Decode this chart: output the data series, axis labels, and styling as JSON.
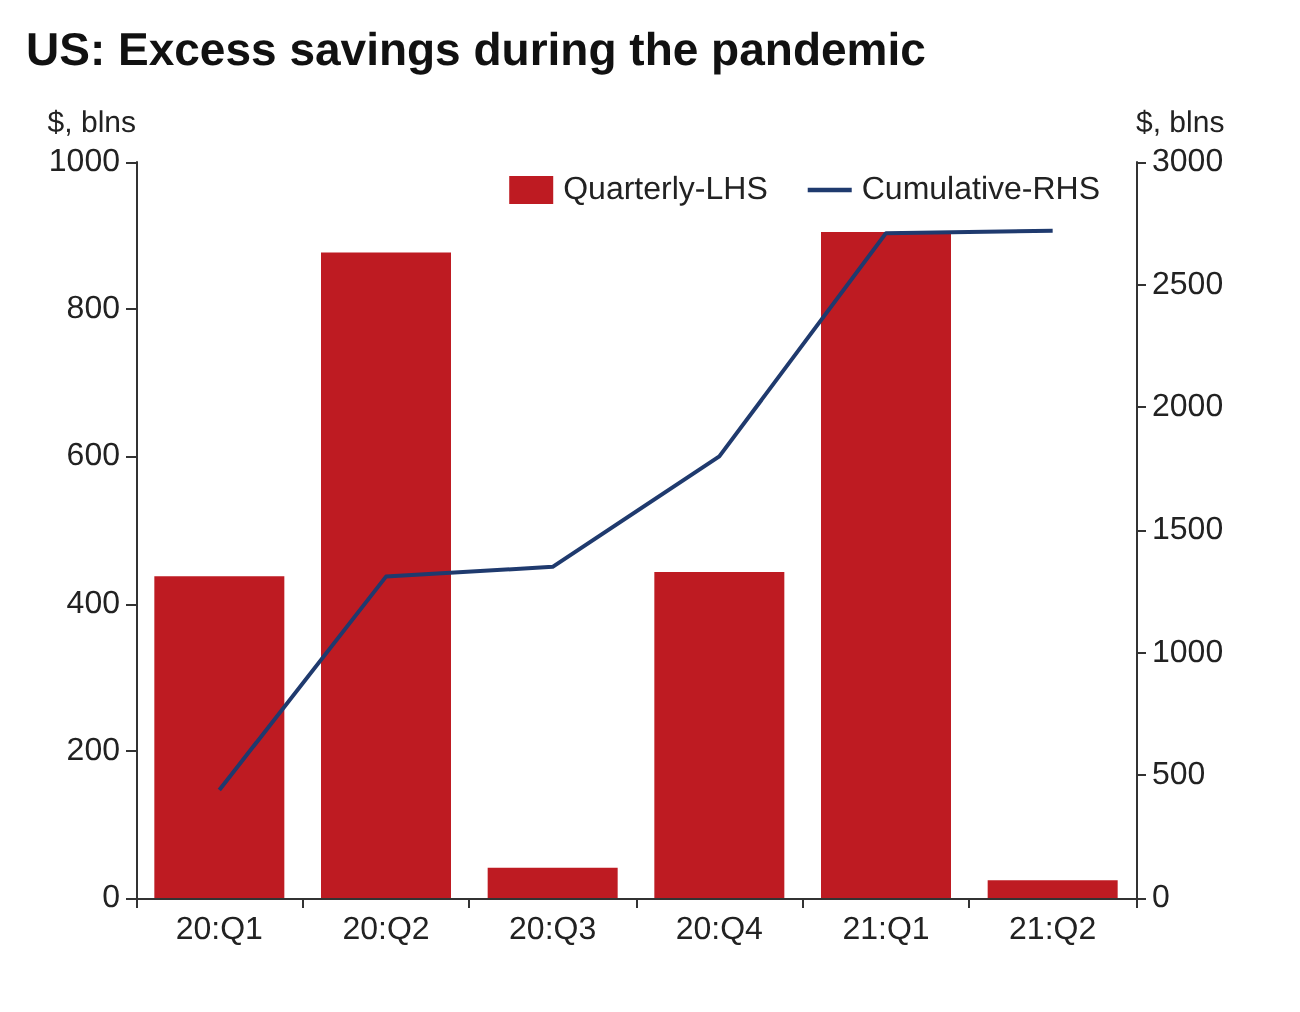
{
  "chart_data": {
    "type": "bar",
    "title": "US: Excess savings during the pandemic",
    "ylabel": "$, blns",
    "y2label": "$, blns",
    "categories": [
      "20:Q1",
      "20:Q2",
      "20:Q3",
      "20:Q4",
      "21:Q1",
      "21:Q2"
    ],
    "series": [
      {
        "name": "Quarterly-LHS",
        "color": "#be1b22",
        "values": [
          437,
          877,
          41,
          443,
          905,
          24
        ]
      },
      {
        "name": "Cumulative-RHS",
        "type": "line",
        "axis": "y2",
        "color": "#1f3a6e",
        "values": [
          440,
          1310,
          1350,
          1800,
          2710,
          2720
        ]
      }
    ],
    "ylim": [
      0,
      1000
    ],
    "yticks": [
      0,
      200,
      400,
      600,
      800,
      1000
    ],
    "y2lim": [
      0,
      3000
    ],
    "y2ticks": [
      0,
      500,
      1000,
      1500,
      2000,
      2500,
      3000
    ],
    "grid": false,
    "legend": "top right",
    "marker": "none",
    "line_style": "solid"
  }
}
